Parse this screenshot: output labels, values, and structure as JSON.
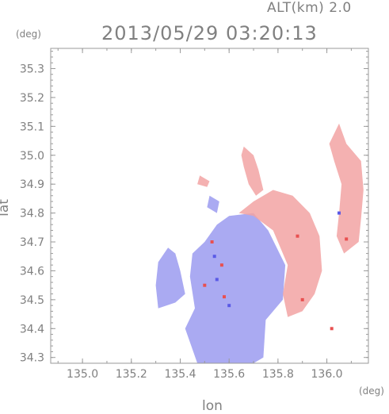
{
  "header": {
    "altitude_label": "ALT(km) 2.0",
    "timestamp": "2013/05/29 03:20:13"
  },
  "axes": {
    "y_unit": "(deg)",
    "x_unit": "(deg)",
    "xlabel": "lon",
    "ylabel": "lat",
    "xlim": [
      134.87,
      136.17
    ],
    "ylim": [
      34.28,
      35.37
    ],
    "x_ticks": [
      135.0,
      135.2,
      135.4,
      135.6,
      135.8,
      136.0
    ],
    "x_tick_labels": [
      "135.0",
      "135.2",
      "135.4",
      "135.6",
      "135.8",
      "136.0"
    ],
    "y_ticks": [
      34.3,
      34.4,
      34.5,
      34.6,
      34.7,
      34.8,
      34.9,
      35.0,
      35.1,
      35.2,
      35.3
    ],
    "y_tick_labels": [
      "34.3",
      "34.4",
      "34.5",
      "34.6",
      "34.7",
      "34.8",
      "34.9",
      "35.0",
      "35.1",
      "35.2",
      "35.3"
    ]
  },
  "map": {
    "type": "doppler-velocity-field",
    "approaching_color": "#9b9bf0",
    "receding_color": "#f2a3a3",
    "strong_receding_color": "#e85050",
    "strong_approaching_color": "#5a5ae6",
    "regions": [
      {
        "name": "main-approaching-echo",
        "polarity": "approaching",
        "points": [
          [
            135.47,
            34.28
          ],
          [
            135.42,
            34.4
          ],
          [
            135.46,
            34.47
          ],
          [
            135.44,
            34.58
          ],
          [
            135.45,
            34.66
          ],
          [
            135.5,
            34.7
          ],
          [
            135.55,
            34.76
          ],
          [
            135.6,
            34.79
          ],
          [
            135.7,
            34.8
          ],
          [
            135.76,
            34.74
          ],
          [
            135.83,
            34.62
          ],
          [
            135.82,
            34.5
          ],
          [
            135.75,
            34.43
          ],
          [
            135.74,
            34.3
          ],
          [
            135.7,
            34.28
          ]
        ]
      },
      {
        "name": "receding-echo-east",
        "polarity": "receding",
        "points": [
          [
            135.64,
            34.8
          ],
          [
            135.7,
            34.84
          ],
          [
            135.78,
            34.88
          ],
          [
            135.86,
            34.86
          ],
          [
            135.93,
            34.8
          ],
          [
            135.97,
            34.72
          ],
          [
            135.98,
            34.6
          ],
          [
            135.95,
            34.52
          ],
          [
            135.9,
            34.46
          ],
          [
            135.84,
            34.44
          ],
          [
            135.82,
            34.52
          ],
          [
            135.84,
            34.62
          ],
          [
            135.78,
            34.74
          ],
          [
            135.7,
            34.79
          ]
        ]
      },
      {
        "name": "receding-arc-northeast",
        "polarity": "receding",
        "points": [
          [
            136.05,
            35.11
          ],
          [
            136.08,
            35.04
          ],
          [
            136.14,
            34.98
          ],
          [
            136.15,
            34.88
          ],
          [
            136.14,
            34.78
          ],
          [
            136.13,
            34.7
          ],
          [
            136.07,
            34.66
          ],
          [
            136.04,
            34.72
          ],
          [
            136.05,
            34.8
          ],
          [
            136.06,
            34.9
          ],
          [
            136.03,
            34.98
          ],
          [
            136.01,
            35.04
          ]
        ]
      },
      {
        "name": "receding-cell-north",
        "polarity": "receding",
        "points": [
          [
            135.66,
            35.03
          ],
          [
            135.7,
            35.0
          ],
          [
            135.72,
            34.95
          ],
          [
            135.74,
            34.88
          ],
          [
            135.71,
            34.86
          ],
          [
            135.68,
            34.9
          ],
          [
            135.66,
            34.96
          ],
          [
            135.65,
            35.0
          ]
        ]
      },
      {
        "name": "approaching-cell-west",
        "polarity": "approaching",
        "points": [
          [
            135.35,
            34.68
          ],
          [
            135.31,
            34.63
          ],
          [
            135.3,
            34.55
          ],
          [
            135.31,
            34.47
          ],
          [
            135.38,
            34.49
          ],
          [
            135.42,
            34.52
          ],
          [
            135.4,
            34.6
          ],
          [
            135.38,
            34.66
          ]
        ]
      },
      {
        "name": "receding-speckle-north",
        "polarity": "receding",
        "points": [
          [
            135.48,
            34.93
          ],
          [
            135.52,
            34.91
          ],
          [
            135.51,
            34.89
          ],
          [
            135.47,
            34.9
          ]
        ]
      },
      {
        "name": "approaching-speckle-central",
        "polarity": "approaching",
        "points": [
          [
            135.52,
            34.86
          ],
          [
            135.56,
            34.84
          ],
          [
            135.55,
            34.8
          ],
          [
            135.51,
            34.82
          ]
        ]
      }
    ],
    "speckles": [
      {
        "lon": 135.53,
        "lat": 34.7,
        "polarity": "strong-receding"
      },
      {
        "lon": 135.57,
        "lat": 34.62,
        "polarity": "strong-receding"
      },
      {
        "lon": 135.55,
        "lat": 34.57,
        "polarity": "strong-approaching"
      },
      {
        "lon": 135.58,
        "lat": 34.51,
        "polarity": "strong-receding"
      },
      {
        "lon": 135.5,
        "lat": 34.55,
        "polarity": "strong-receding"
      },
      {
        "lon": 136.08,
        "lat": 34.71,
        "polarity": "strong-receding"
      },
      {
        "lon": 135.88,
        "lat": 34.72,
        "polarity": "strong-receding"
      },
      {
        "lon": 135.9,
        "lat": 34.5,
        "polarity": "strong-receding"
      },
      {
        "lon": 136.05,
        "lat": 34.8,
        "polarity": "strong-approaching"
      },
      {
        "lon": 135.54,
        "lat": 34.65,
        "polarity": "strong-approaching"
      },
      {
        "lon": 135.6,
        "lat": 34.48,
        "polarity": "strong-approaching"
      },
      {
        "lon": 136.02,
        "lat": 34.4,
        "polarity": "strong-receding"
      }
    ]
  }
}
